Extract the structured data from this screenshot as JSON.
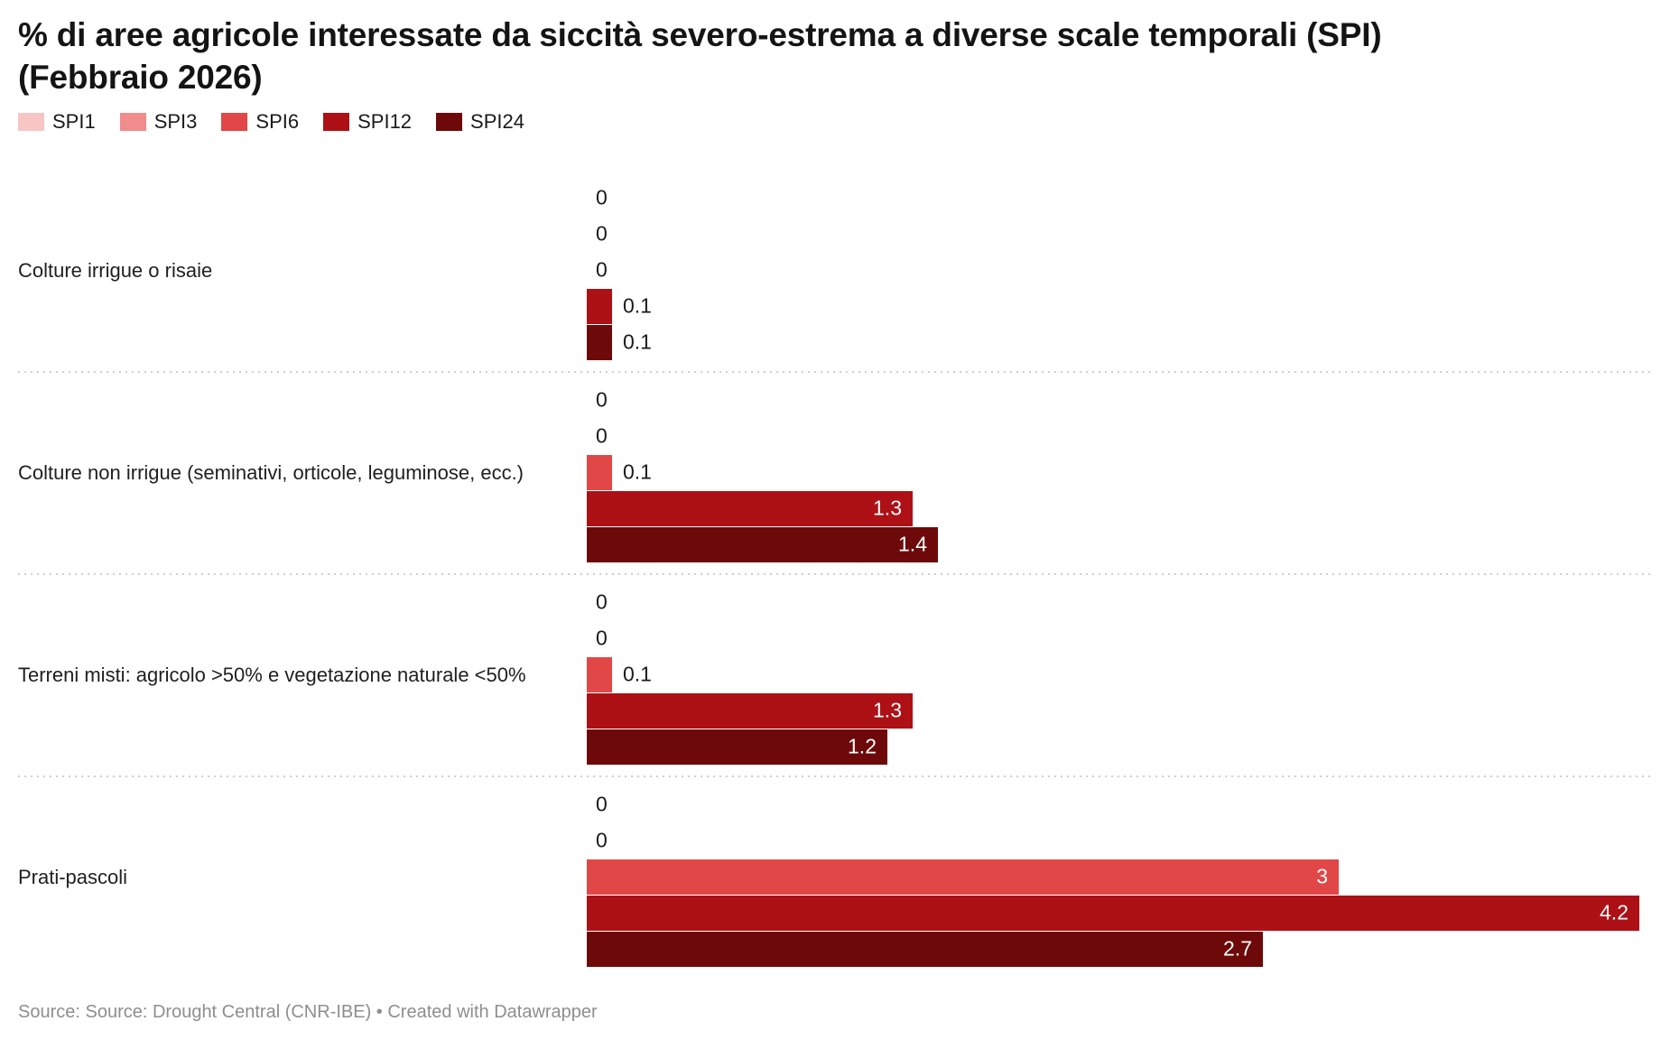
{
  "header": {
    "title_line1": "% di aree agricole interessate da siccità severo-estrema a diverse scale temporali (SPI)",
    "title_line2": "(Febbraio 2026)"
  },
  "footer": {
    "source": "Source: Source: Drought Central (CNR-IBE) • Created with Datawrapper"
  },
  "chart_data": {
    "type": "bar",
    "orientation": "horizontal",
    "title": "% di aree agricole interessate da siccità severo-estrema a diverse scale temporali (SPI) (Febbraio 2026)",
    "categories": [
      "Colture irrigue o risaie",
      "Colture non irrigue (seminativi, orticole, leguminose, ecc.)",
      "Terreni misti: agricolo >50% e vegetazione naturale <50%",
      "Prati-pascoli"
    ],
    "series": [
      {
        "name": "SPI1",
        "color": "#f8c5c5",
        "values": [
          0,
          0,
          0,
          0
        ]
      },
      {
        "name": "SPI3",
        "color": "#f08c8c",
        "values": [
          0,
          0,
          0,
          0
        ]
      },
      {
        "name": "SPI6",
        "color": "#e24747",
        "values": [
          0,
          0.1,
          0.1,
          3
        ]
      },
      {
        "name": "SPI12",
        "color": "#ad1015",
        "values": [
          0.1,
          1.3,
          1.3,
          4.2
        ]
      },
      {
        "name": "SPI24",
        "color": "#6d0909",
        "values": [
          0.1,
          1.4,
          1.2,
          2.7
        ]
      }
    ],
    "xlim": [
      0,
      4.2
    ],
    "value_suffix": "",
    "legend_position": "top",
    "grid": false,
    "value_labels": "shown at bar ends; white inside large bars, dark outside small bars"
  }
}
